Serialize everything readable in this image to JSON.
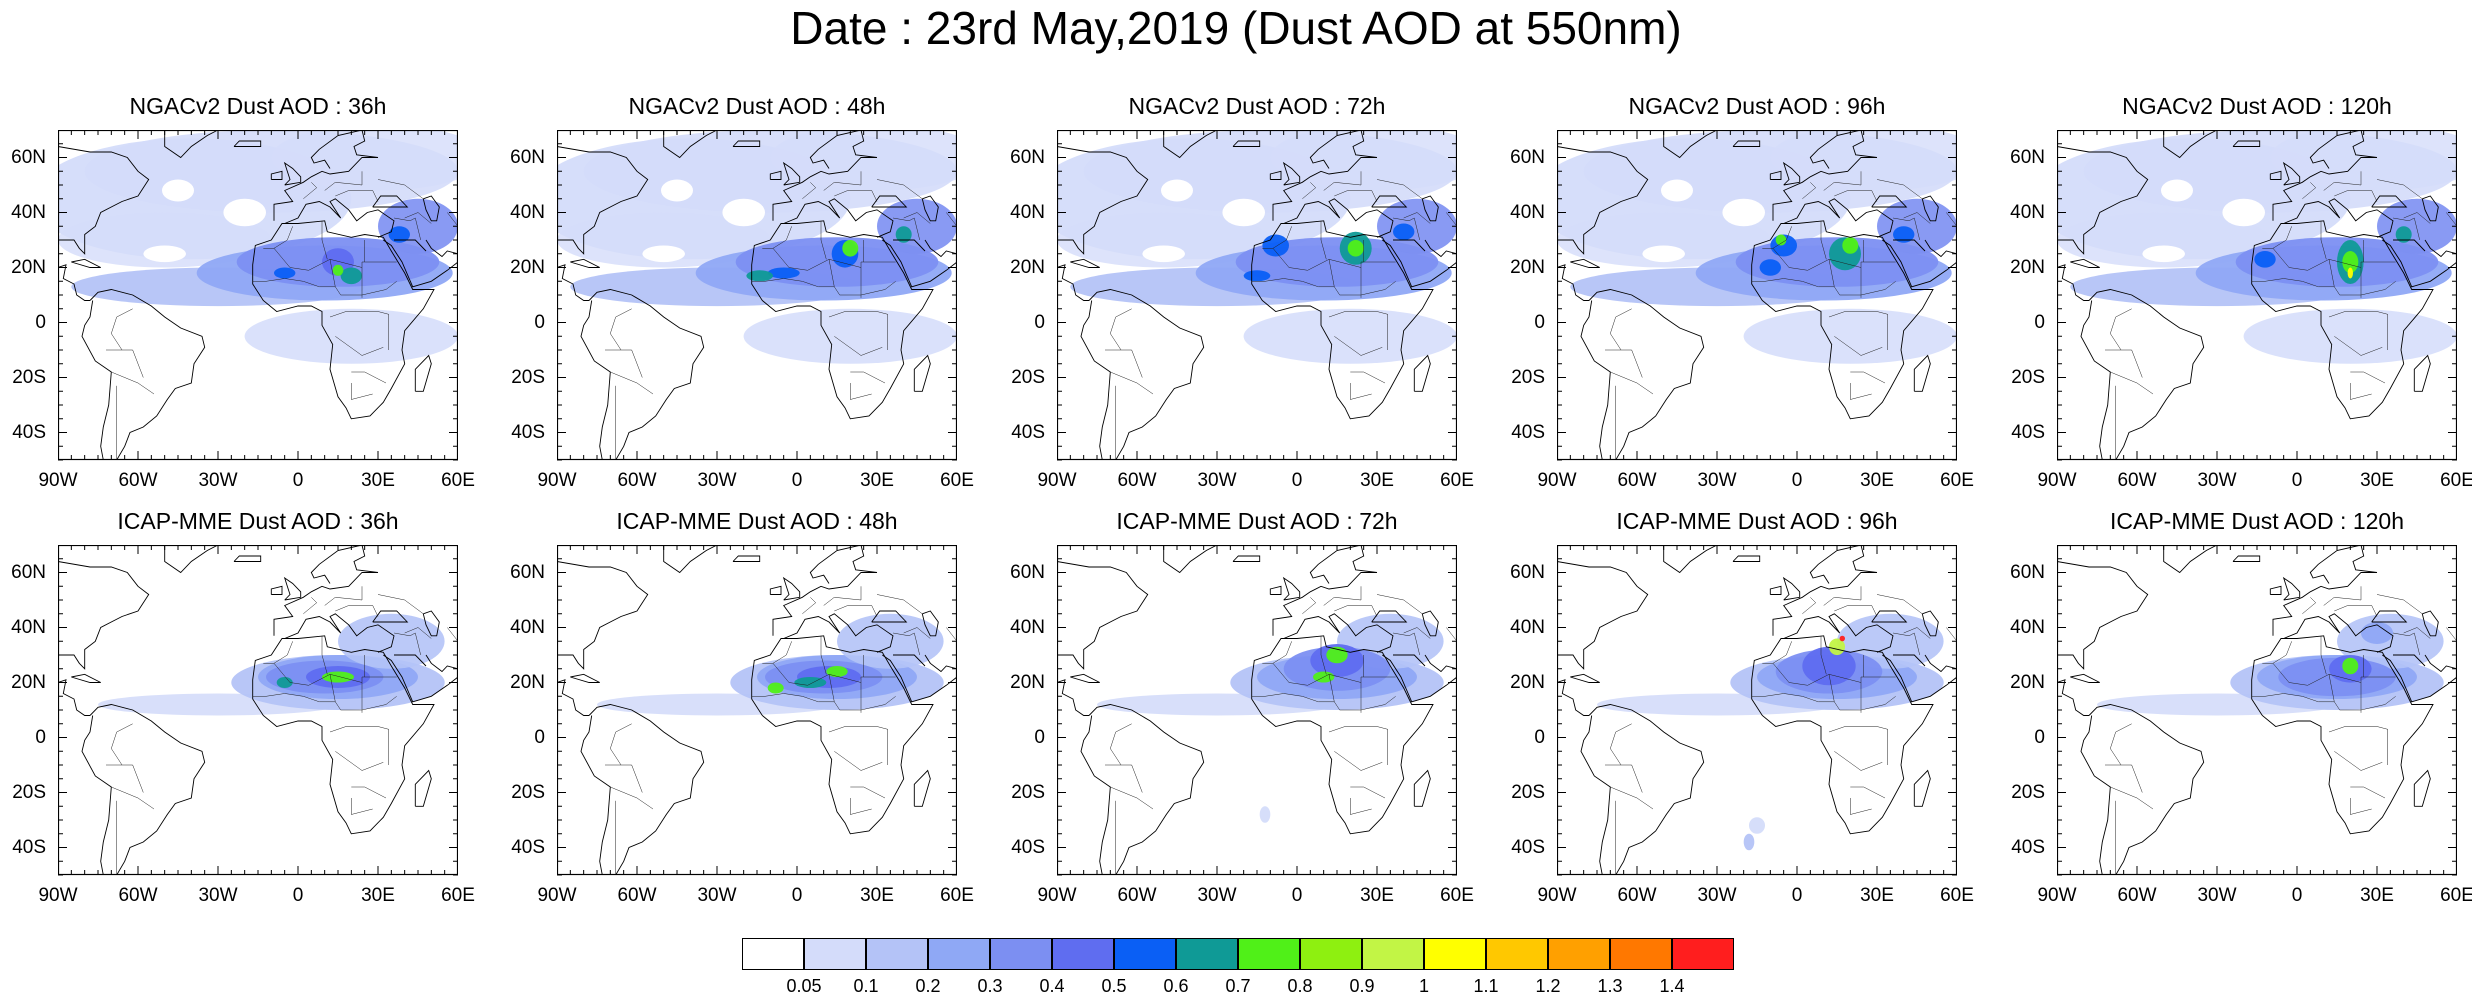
{
  "title": "Date : 23rd May,2019 (Dust AOD at 550nm)",
  "panels": [
    {
      "title": "NGACv2 Dust AOD : 36h",
      "model": "ngac",
      "step": 0
    },
    {
      "title": "NGACv2 Dust AOD : 48h",
      "model": "ngac",
      "step": 1
    },
    {
      "title": "NGACv2 Dust AOD : 72h",
      "model": "ngac",
      "step": 2
    },
    {
      "title": "NGACv2 Dust AOD : 96h",
      "model": "ngac",
      "step": 3
    },
    {
      "title": "NGACv2 Dust AOD : 120h",
      "model": "ngac",
      "step": 4
    },
    {
      "title": "ICAP-MME Dust AOD : 36h",
      "model": "icap",
      "step": 0
    },
    {
      "title": "ICAP-MME Dust AOD : 48h",
      "model": "icap",
      "step": 1
    },
    {
      "title": "ICAP-MME Dust AOD : 72h",
      "model": "icap",
      "step": 2
    },
    {
      "title": "ICAP-MME Dust AOD : 96h",
      "model": "icap",
      "step": 3
    },
    {
      "title": "ICAP-MME Dust AOD : 120h",
      "model": "icap",
      "step": 4
    }
  ],
  "map": {
    "lon_range": [
      -90,
      60
    ],
    "lat_range": [
      -50,
      70
    ],
    "lat_ticks": [
      {
        "value": 60,
        "label": "60N"
      },
      {
        "value": 40,
        "label": "40N"
      },
      {
        "value": 20,
        "label": "20N"
      },
      {
        "value": 0,
        "label": "0"
      },
      {
        "value": -20,
        "label": "20S"
      },
      {
        "value": -40,
        "label": "40S"
      }
    ],
    "lon_ticks": [
      {
        "value": -90,
        "label": "90W"
      },
      {
        "value": -60,
        "label": "60W"
      },
      {
        "value": -30,
        "label": "30W"
      },
      {
        "value": 0,
        "label": "0"
      },
      {
        "value": 30,
        "label": "30E"
      },
      {
        "value": 60,
        "label": "60E"
      }
    ]
  },
  "colorbar": {
    "colors": [
      "#ffffff",
      "#d4dcfa",
      "#b4c3f7",
      "#8fa8f5",
      "#7c8ff2",
      "#5f6df0",
      "#0a5ff5",
      "#0f9a96",
      "#50f018",
      "#8ef010",
      "#c2f545",
      "#ffff00",
      "#ffc800",
      "#ffa000",
      "#ff7800",
      "#ff1e1e"
    ],
    "labels": [
      "0.05",
      "0.1",
      "0.2",
      "0.3",
      "0.4",
      "0.5",
      "0.6",
      "0.7",
      "0.8",
      "0.9",
      "1",
      "1.1",
      "1.2",
      "1.3",
      "1.4"
    ]
  }
}
